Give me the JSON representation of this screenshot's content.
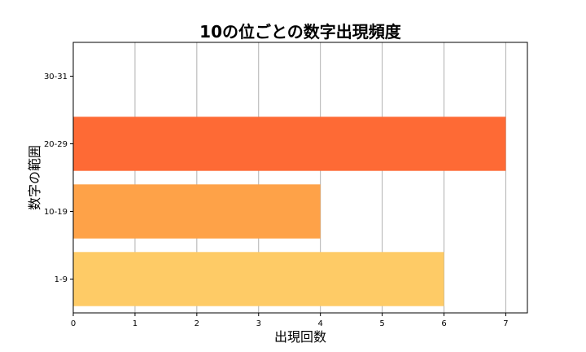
{
  "chart_data": {
    "type": "bar",
    "orientation": "horizontal",
    "title": "10の位ごとの数字出現頻度",
    "xlabel": "出現回数",
    "ylabel": "数字の範囲",
    "categories": [
      "1-9",
      "10-19",
      "20-29",
      "30-31"
    ],
    "values": [
      6,
      4,
      7,
      0
    ],
    "colors": [
      "#fecb66",
      "#fea248",
      "#fe6a35",
      "#fe6a35"
    ],
    "xlim": [
      0,
      7.35
    ],
    "xticks": [
      0,
      1,
      2,
      3,
      4,
      5,
      6,
      7
    ],
    "grid": "vertical"
  }
}
